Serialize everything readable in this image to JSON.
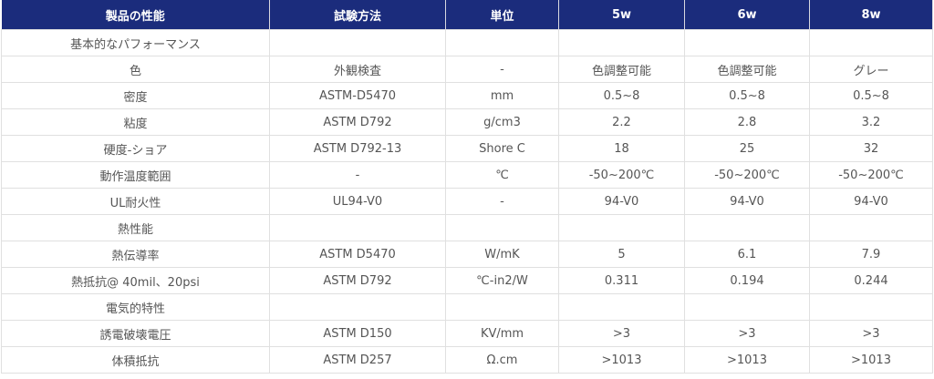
{
  "colors": {
    "header_bg": "#1b2c7c",
    "header_text": "#ffffff",
    "cell_text": "#555555",
    "border": "#e0e0e0"
  },
  "headers": [
    "製品の性能",
    "試験方法",
    "単位",
    "5w",
    "6w",
    "8w"
  ],
  "rows": [
    [
      "基本的なパフォーマンス",
      "",
      "",
      "",
      "",
      ""
    ],
    [
      "色",
      "外観検査",
      "-",
      "色調整可能",
      "色調整可能",
      "グレー"
    ],
    [
      "密度",
      "ASTM-D5470",
      "mm",
      "0.5~8",
      "0.5~8",
      "0.5~8"
    ],
    [
      "粘度",
      "ASTM D792",
      "g/cm3",
      "2.2",
      "2.8",
      "3.2"
    ],
    [
      "硬度-ショア",
      "ASTM D792-13",
      "Shore C",
      "18",
      "25",
      "32"
    ],
    [
      "動作温度範囲",
      "-",
      "℃",
      "-50~200℃",
      "-50~200℃",
      "-50~200℃"
    ],
    [
      "UL耐火性",
      "UL94-V0",
      "-",
      "94-V0",
      "94-V0",
      "94-V0"
    ],
    [
      "熱性能",
      "",
      "",
      "",
      "",
      ""
    ],
    [
      "熱伝導率",
      "ASTM D5470",
      "W/mK",
      "5",
      "6.1",
      "7.9"
    ],
    [
      "熱抵抗@ 40mil、20psi",
      "ASTM D792",
      "℃-in2/W",
      "0.311",
      "0.194",
      "0.244"
    ],
    [
      "電気的特性",
      "",
      "",
      "",
      "",
      ""
    ],
    [
      "誘電破壊電圧",
      "ASTM D150",
      "KV/mm",
      ">3",
      ">3",
      ">3"
    ],
    [
      "体積抵抗",
      "ASTM D257",
      "Ω.cm",
      ">1013",
      ">1013",
      ">1013"
    ]
  ]
}
